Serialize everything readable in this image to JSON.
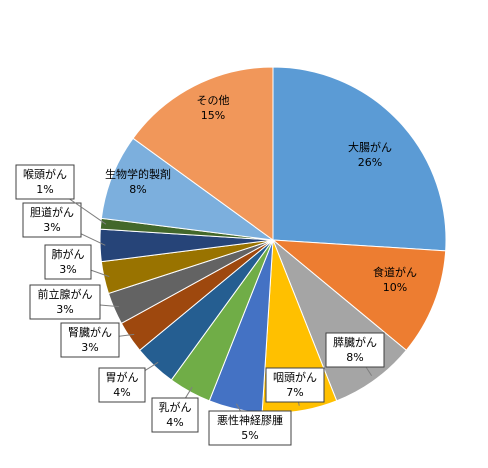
{
  "chart_data": {
    "type": "pie",
    "categories": [
      "大腸がん",
      "食道がん",
      "膵臓がん",
      "咽頭がん",
      "悪性神経膠腫",
      "乳がん",
      "胃がん",
      "腎臓がん",
      "前立腺がん",
      "肺がん",
      "胆道がん",
      "喉頭がん",
      "生物学的製剤",
      "その他"
    ],
    "values": [
      26,
      10,
      8,
      7,
      5,
      4,
      4,
      3,
      3,
      3,
      3,
      1,
      8,
      15
    ],
    "value_labels": [
      "26%",
      "10%",
      "8%",
      "7%",
      "5%",
      "4%",
      "4%",
      "3%",
      "3%",
      "3%",
      "3%",
      "1%",
      "8%",
      "15%"
    ],
    "colors": [
      "#5b9bd5",
      "#ed7d31",
      "#a5a5a5",
      "#ffc000",
      "#4472c4",
      "#70ad47",
      "#255e91",
      "#9e480e",
      "#636363",
      "#997300",
      "#264478",
      "#43682b",
      "#7cafdd",
      "#f1975a"
    ]
  }
}
